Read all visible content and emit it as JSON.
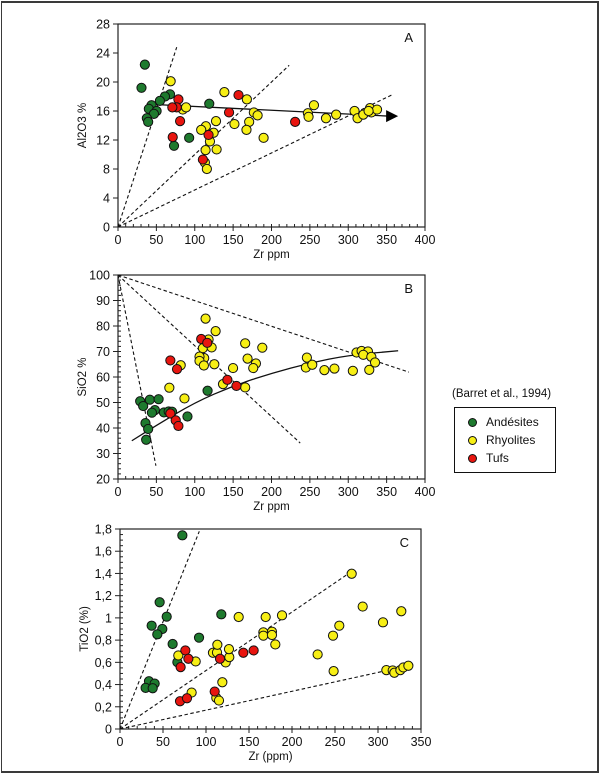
{
  "legend": {
    "source": "(Barret et al., 1994)",
    "items": [
      {
        "label": "Andésites",
        "color": "#1e7a2e"
      },
      {
        "label": "Rhyolites",
        "color": "#f7ef15"
      },
      {
        "label": "Tufs",
        "color": "#e8150f"
      }
    ]
  },
  "chart_data": [
    {
      "type": "scatter",
      "panel": "A",
      "xlabel": "Zr ppm",
      "ylabel": "Al2O3 %",
      "xlim": [
        0,
        400
      ],
      "ylim": [
        0,
        28
      ],
      "xticks": [
        "0",
        "50",
        "100",
        "150",
        "200",
        "250",
        "300",
        "350",
        "400"
      ],
      "yticks": [
        "0",
        "4",
        "8",
        "12",
        "16",
        "20",
        "24",
        "28"
      ],
      "xtick_values": [
        0,
        50,
        100,
        150,
        200,
        250,
        300,
        350,
        400
      ],
      "ytick_values": [
        0,
        4,
        8,
        12,
        16,
        20,
        24,
        28
      ],
      "x_minor_step": 10,
      "y_minor_step": 0,
      "series": [
        {
          "name": "Andésites",
          "points": [
            [
              35,
              22.4
            ],
            [
              30.6,
              19.2
            ],
            [
              67.8,
              18.3
            ],
            [
              61.2,
              18.0
            ],
            [
              54.6,
              17.4
            ],
            [
              43.7,
              16.8
            ],
            [
              40.2,
              16.3
            ],
            [
              50.3,
              16.0
            ],
            [
              46.8,
              15.6
            ],
            [
              37.6,
              15.0
            ],
            [
              39.3,
              14.5
            ],
            [
              118.9,
              17.0
            ],
            [
              92.7,
              12.3
            ],
            [
              73,
              11.2
            ]
          ]
        },
        {
          "name": "Rhyolites",
          "points": [
            [
              68.6,
              20.1
            ],
            [
              84.4,
              16.2
            ],
            [
              88.7,
              16.5
            ],
            [
              138.6,
              18.6
            ],
            [
              167.9,
              17.6
            ],
            [
              177,
              15.8
            ],
            [
              181.9,
              15.4
            ],
            [
              170.9,
              14.5
            ],
            [
              167.4,
              13.4
            ],
            [
              189.7,
              12.3
            ],
            [
              151.7,
              14.2
            ],
            [
              127.7,
              14.6
            ],
            [
              124.6,
              13.0
            ],
            [
              114.5,
              13.9
            ],
            [
              108.4,
              13.4
            ],
            [
              119.8,
              11.8
            ],
            [
              128.5,
              10.7
            ],
            [
              114.1,
              10.6
            ],
            [
              113.2,
              8.9
            ],
            [
              115.8,
              8.0
            ],
            [
              247.4,
              15.7
            ],
            [
              248.3,
              15.2
            ],
            [
              255.3,
              16.8
            ],
            [
              271,
              15.0
            ],
            [
              284.2,
              15.5
            ],
            [
              308.2,
              16.0
            ],
            [
              312.1,
              15.0
            ],
            [
              319.6,
              15.5
            ],
            [
              328.3,
              16.4
            ],
            [
              330.1,
              15.8
            ],
            [
              337.5,
              16.2
            ],
            [
              326.5,
              16.0
            ]
          ]
        },
        {
          "name": "Tufs",
          "points": [
            [
              78.7,
              17.6
            ],
            [
              76.5,
              16.5
            ],
            [
              70.8,
              16.5
            ],
            [
              80.9,
              14.6
            ],
            [
              71.3,
              12.4
            ],
            [
              144.7,
              15.8
            ],
            [
              157,
              18.2
            ],
            [
              118,
              12.7
            ],
            [
              110.6,
              9.3
            ],
            [
              230.8,
              14.5
            ]
          ]
        }
      ],
      "dashed_lines": [
        [
          [
            0,
            0
          ],
          [
            76.5,
            24.8
          ]
        ],
        [
          [
            0,
            0
          ],
          [
            223,
            22.3
          ]
        ],
        [
          [
            0,
            0
          ],
          [
            358.5,
            18.3
          ]
        ]
      ],
      "trend_arrow": [
        [
          48,
          16.9
        ],
        [
          365,
          15.3
        ]
      ]
    },
    {
      "type": "scatter",
      "panel": "B",
      "xlabel": "Zr ppm",
      "ylabel": "SiO2 %",
      "xlim": [
        0,
        400
      ],
      "ylim": [
        20,
        100
      ],
      "xticks": [
        "0",
        "50",
        "100",
        "150",
        "200",
        "250",
        "300",
        "350",
        "400"
      ],
      "yticks": [
        "20",
        "30",
        "40",
        "50",
        "60",
        "70",
        "80",
        "90",
        "100"
      ],
      "xtick_values": [
        0,
        50,
        100,
        150,
        200,
        250,
        300,
        350,
        400
      ],
      "ytick_values": [
        20,
        30,
        40,
        50,
        60,
        70,
        80,
        90,
        100
      ],
      "x_minor_step": 10,
      "y_minor_step": 2,
      "series": [
        {
          "name": "Andésites",
          "points": [
            [
              28.9,
              50.5
            ],
            [
              32.8,
              48.6
            ],
            [
              41.5,
              51.1
            ],
            [
              52.9,
              51.3
            ],
            [
              48.1,
              47.0
            ],
            [
              44.2,
              46.0
            ],
            [
              59.9,
              46.1
            ],
            [
              66,
              46.5
            ],
            [
              70.4,
              46.4
            ],
            [
              35.8,
              41.9
            ],
            [
              39.3,
              39.6
            ],
            [
              36.7,
              35.4
            ],
            [
              90.5,
              44.5
            ],
            [
              116.7,
              54.6
            ]
          ]
        },
        {
          "name": "Rhyolites",
          "points": [
            [
              114.1,
              82.9
            ],
            [
              127.2,
              78.0
            ],
            [
              118,
              74.7
            ],
            [
              110.6,
              71.3
            ],
            [
              122,
              71.6
            ],
            [
              112.3,
              67.4
            ],
            [
              106.2,
              68.0
            ],
            [
              106.2,
              66.3
            ],
            [
              111.9,
              64.5
            ],
            [
              125.5,
              65.0
            ],
            [
              165.7,
              73.2
            ],
            [
              168.8,
              67.2
            ],
            [
              188,
              71.5
            ],
            [
              179.7,
              65.3
            ],
            [
              176.2,
              63.5
            ],
            [
              149.9,
              63.5
            ],
            [
              81.7,
              64.6
            ],
            [
              66.9,
              55.8
            ],
            [
              86.6,
              51.6
            ],
            [
              136.8,
              57.2
            ],
            [
              165.7,
              55.9
            ],
            [
              246.1,
              67.6
            ],
            [
              244.8,
              63.7
            ],
            [
              253.1,
              64.8
            ],
            [
              268.9,
              62.7
            ],
            [
              282,
              63.3
            ],
            [
              306,
              62.4
            ],
            [
              310.8,
              69.6
            ],
            [
              317.4,
              70.2
            ],
            [
              325.7,
              70.0
            ],
            [
              319.6,
              68.7
            ],
            [
              330.1,
              67.9
            ],
            [
              327.4,
              62.8
            ],
            [
              334.9,
              65.7
            ]
          ]
        },
        {
          "name": "Tufs",
          "points": [
            [
              108.4,
              74.9
            ],
            [
              116.3,
              73.4
            ],
            [
              68.2,
              66.5
            ],
            [
              76.9,
              63.1
            ],
            [
              68.2,
              45.7
            ],
            [
              75.2,
              43.0
            ],
            [
              78.7,
              40.8
            ],
            [
              142.5,
              58.9
            ],
            [
              154.3,
              56.5
            ]
          ]
        }
      ],
      "dashed_lines": [
        [
          [
            0,
            100
          ],
          [
            49.4,
            25.2
          ]
        ],
        [
          [
            0,
            100
          ],
          [
            237.4,
            34.1
          ]
        ],
        [
          [
            0,
            100
          ],
          [
            379,
            61.9
          ]
        ]
      ],
      "trend_curve": [
        [
          18,
          35
        ],
        [
          50,
          41
        ],
        [
          100,
          50
        ],
        [
          150,
          56.5
        ],
        [
          200,
          61.5
        ],
        [
          250,
          65.5
        ],
        [
          300,
          68.5
        ],
        [
          365,
          70.3
        ]
      ]
    },
    {
      "type": "scatter",
      "panel": "C",
      "xlabel": "Zr (ppm)",
      "ylabel": "TiO2 (%)",
      "xlim": [
        0,
        350
      ],
      "ylim": [
        0,
        1.8
      ],
      "xticks": [
        "0",
        "50",
        "100",
        "150",
        "200",
        "250",
        "300",
        "350"
      ],
      "yticks": [
        "0",
        "0,2",
        "0,4",
        "0,6",
        "0,8",
        "1",
        "1,2",
        "1,4",
        "1,6",
        "1,8"
      ],
      "xtick_values": [
        0,
        50,
        100,
        150,
        200,
        250,
        300,
        350
      ],
      "ytick_values": [
        0,
        0.2,
        0.4,
        0.6,
        0.8,
        1.0,
        1.2,
        1.4,
        1.6,
        1.8
      ],
      "x_minor_step": 10,
      "y_minor_step": 0.05,
      "series": [
        {
          "name": "Andésites",
          "points": [
            [
              72.5,
              1.743
            ],
            [
              46.1,
              1.141
            ],
            [
              54.3,
              1.011
            ],
            [
              36.8,
              0.93
            ],
            [
              49.2,
              0.9
            ],
            [
              43.4,
              0.852
            ],
            [
              61.2,
              0.765
            ],
            [
              91.9,
              0.822
            ],
            [
              117.8,
              1.032
            ],
            [
              66.7,
              0.602
            ],
            [
              33.7,
              0.43
            ],
            [
              40.3,
              0.409
            ],
            [
              29.8,
              0.37
            ],
            [
              38,
              0.367
            ]
          ]
        },
        {
          "name": "Rhyolites",
          "points": [
            [
              67.8,
              0.662
            ],
            [
              88,
              0.608
            ],
            [
              83.3,
              0.328
            ],
            [
              112,
              0.28
            ],
            [
              115.1,
              0.256
            ],
            [
              119,
              0.421
            ],
            [
              122.9,
              0.599
            ],
            [
              127.1,
              0.647
            ],
            [
              126.7,
              0.719
            ],
            [
              108.1,
              0.686
            ],
            [
              112.8,
              0.689
            ],
            [
              113.2,
              0.758
            ],
            [
              138,
              1.008
            ],
            [
              169.4,
              1.008
            ],
            [
              188.4,
              1.023
            ],
            [
              166.7,
              0.87
            ],
            [
              166.7,
              0.84
            ],
            [
              176.7,
              0.876
            ],
            [
              176.7,
              0.846
            ],
            [
              180.6,
              0.761
            ],
            [
              229.8,
              0.671
            ],
            [
              269.4,
              1.397
            ],
            [
              282.2,
              1.102
            ],
            [
              247.7,
              0.84
            ],
            [
              255,
              0.93
            ],
            [
              248.4,
              0.521
            ],
            [
              305.8,
              0.96
            ],
            [
              327.1,
              1.06
            ],
            [
              309.7,
              0.53
            ],
            [
              317.1,
              0.527
            ],
            [
              319,
              0.506
            ],
            [
              326,
              0.53
            ],
            [
              329.5,
              0.554
            ],
            [
              335.3,
              0.569
            ]
          ]
        },
        {
          "name": "Tufs",
          "points": [
            [
              76,
              0.707
            ],
            [
              79.5,
              0.632
            ],
            [
              70.5,
              0.557
            ],
            [
              116.3,
              0.632
            ],
            [
              143.4,
              0.686
            ],
            [
              155.4,
              0.707
            ],
            [
              69.8,
              0.25
            ],
            [
              77.9,
              0.277
            ],
            [
              110.1,
              0.337
            ]
          ]
        }
      ],
      "dashed_lines": [
        [
          [
            0,
            0
          ],
          [
            92.2,
            1.779
          ]
        ],
        [
          [
            0,
            0
          ],
          [
            269.4,
            1.418
          ]
        ],
        [
          [
            0,
            0
          ],
          [
            335.3,
            0.569
          ]
        ]
      ]
    }
  ]
}
